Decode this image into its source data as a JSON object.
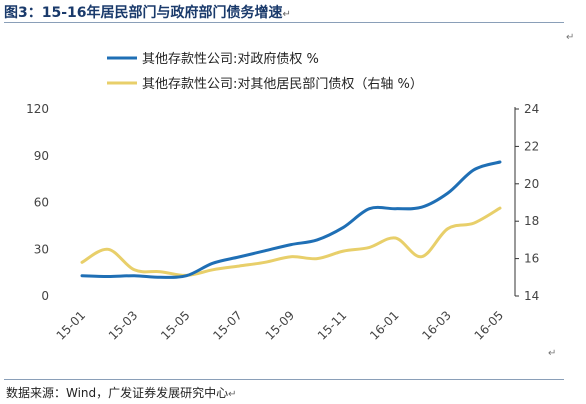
{
  "header": {
    "title": "图3：15-16年居民部门与政府部门债务增速",
    "mark": "↵"
  },
  "footer": {
    "source": "数据来源：Wind，广发证券发展研究中心",
    "mark": "↵"
  },
  "chart_data": {
    "type": "line",
    "categories": [
      "15-01",
      "15-02",
      "15-03",
      "15-04",
      "15-05",
      "15-06",
      "15-07",
      "15-08",
      "15-09",
      "15-10",
      "15-11",
      "15-12",
      "16-01",
      "16-02",
      "16-03",
      "16-04",
      "16-05"
    ],
    "x_tick_labels": [
      "15-01",
      "15-03",
      "15-05",
      "15-07",
      "15-09",
      "15-11",
      "16-01",
      "16-03",
      "16-05"
    ],
    "series": [
      {
        "name": "其他存款性公司:对政府债权 %",
        "axis": "left",
        "color": "#1f6fb5",
        "values": [
          13,
          12.5,
          13,
          12,
          13,
          21,
          25,
          29,
          33,
          36,
          44,
          56,
          56,
          57,
          66,
          81,
          86
        ]
      },
      {
        "name": "其他存款性公司:对其他居民部门债权（右轴 %）",
        "axis": "right",
        "color": "#e8cf6a",
        "values": [
          15.8,
          16.5,
          15.4,
          15.3,
          15.1,
          15.4,
          15.6,
          15.8,
          16.1,
          16.0,
          16.4,
          16.6,
          17.1,
          16.1,
          17.6,
          17.9,
          18.7
        ]
      }
    ],
    "y_left": {
      "ticks": [
        0,
        30,
        60,
        90,
        120
      ],
      "lim": [
        0,
        120
      ]
    },
    "y_right": {
      "ticks": [
        14,
        16,
        18,
        20,
        22,
        24
      ],
      "lim": [
        14,
        24
      ]
    },
    "legend_position": "top-left",
    "grid": false
  }
}
